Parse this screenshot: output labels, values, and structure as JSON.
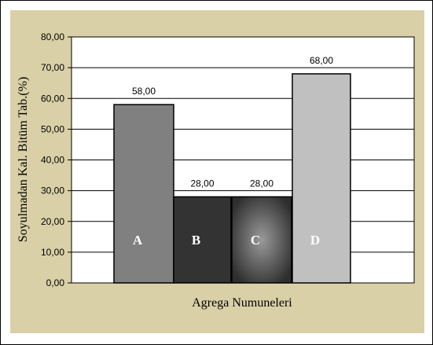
{
  "chart_data": {
    "type": "bar",
    "categories": [
      "A",
      "B",
      "C",
      "D"
    ],
    "values": [
      58.0,
      28.0,
      28.0,
      68.0
    ],
    "data_labels": [
      "58,00",
      "28,00",
      "28,00",
      "68,00"
    ],
    "ylabel": "Soyulmadan Kal. Bitüm Tab.(%)",
    "xlabel": "Agrega Numuneleri",
    "ylim": [
      0,
      80
    ],
    "yticks": [
      0,
      10,
      20,
      30,
      40,
      50,
      60,
      70,
      80
    ],
    "ytick_labels": [
      "0,00",
      "10,00",
      "20,00",
      "30,00",
      "40,00",
      "50,00",
      "60,00",
      "70,00",
      "80,00"
    ],
    "grid": "horizontal",
    "legend": "none",
    "colors": {
      "background": "#d9d0a7",
      "plot_area": "#ffffff",
      "bar_A": "#808080",
      "bar_B": "#333333",
      "bar_C_center": "#9a9a9a",
      "bar_C_edge": "#2e2e2e",
      "bar_D": "#c0c0c0"
    }
  }
}
